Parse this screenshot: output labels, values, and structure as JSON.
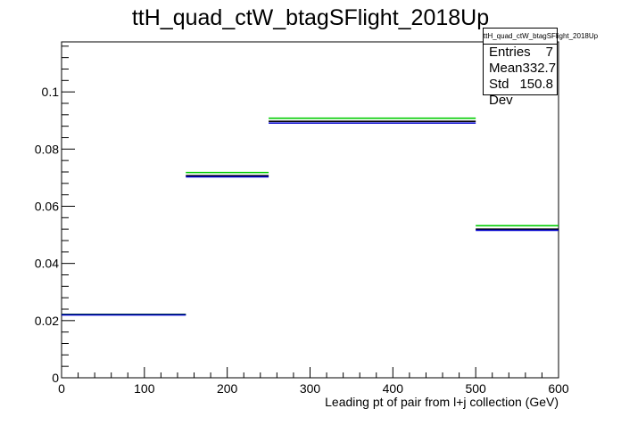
{
  "chart_data": {
    "type": "bar",
    "title": "ttH_quad_ctW_btagSFlight_2018Up",
    "xlabel": "Leading pt of pair from l+j collection (GeV)",
    "ylabel": "",
    "xlim": [
      0,
      600
    ],
    "ylim": [
      0,
      0.1175
    ],
    "bin_edges": [
      0,
      150,
      250,
      500,
      600
    ],
    "x_ticks": [
      "0",
      "100",
      "200",
      "300",
      "400",
      "500",
      "600"
    ],
    "y_ticks": [
      "0",
      "0.02",
      "0.04",
      "0.06",
      "0.08",
      "0.1"
    ],
    "series": [
      {
        "color": "#00cc00",
        "values": [
          0.0222,
          0.0718,
          0.0908,
          0.0532
        ]
      },
      {
        "color": "#000000",
        "values": [
          0.0221,
          0.0707,
          0.0897,
          0.052
        ]
      },
      {
        "color": "#0000cc",
        "values": [
          0.022,
          0.0703,
          0.0891,
          0.0516
        ]
      }
    ],
    "stats": {
      "title": "ttH_quad_ctW_btagSFlight_2018Up",
      "rows": [
        {
          "label": "Entries",
          "value": "7"
        },
        {
          "label": "Mean",
          "value": "332.7"
        },
        {
          "label": "Std Dev",
          "value": "150.8"
        }
      ]
    },
    "grid": false,
    "legend": "none"
  }
}
